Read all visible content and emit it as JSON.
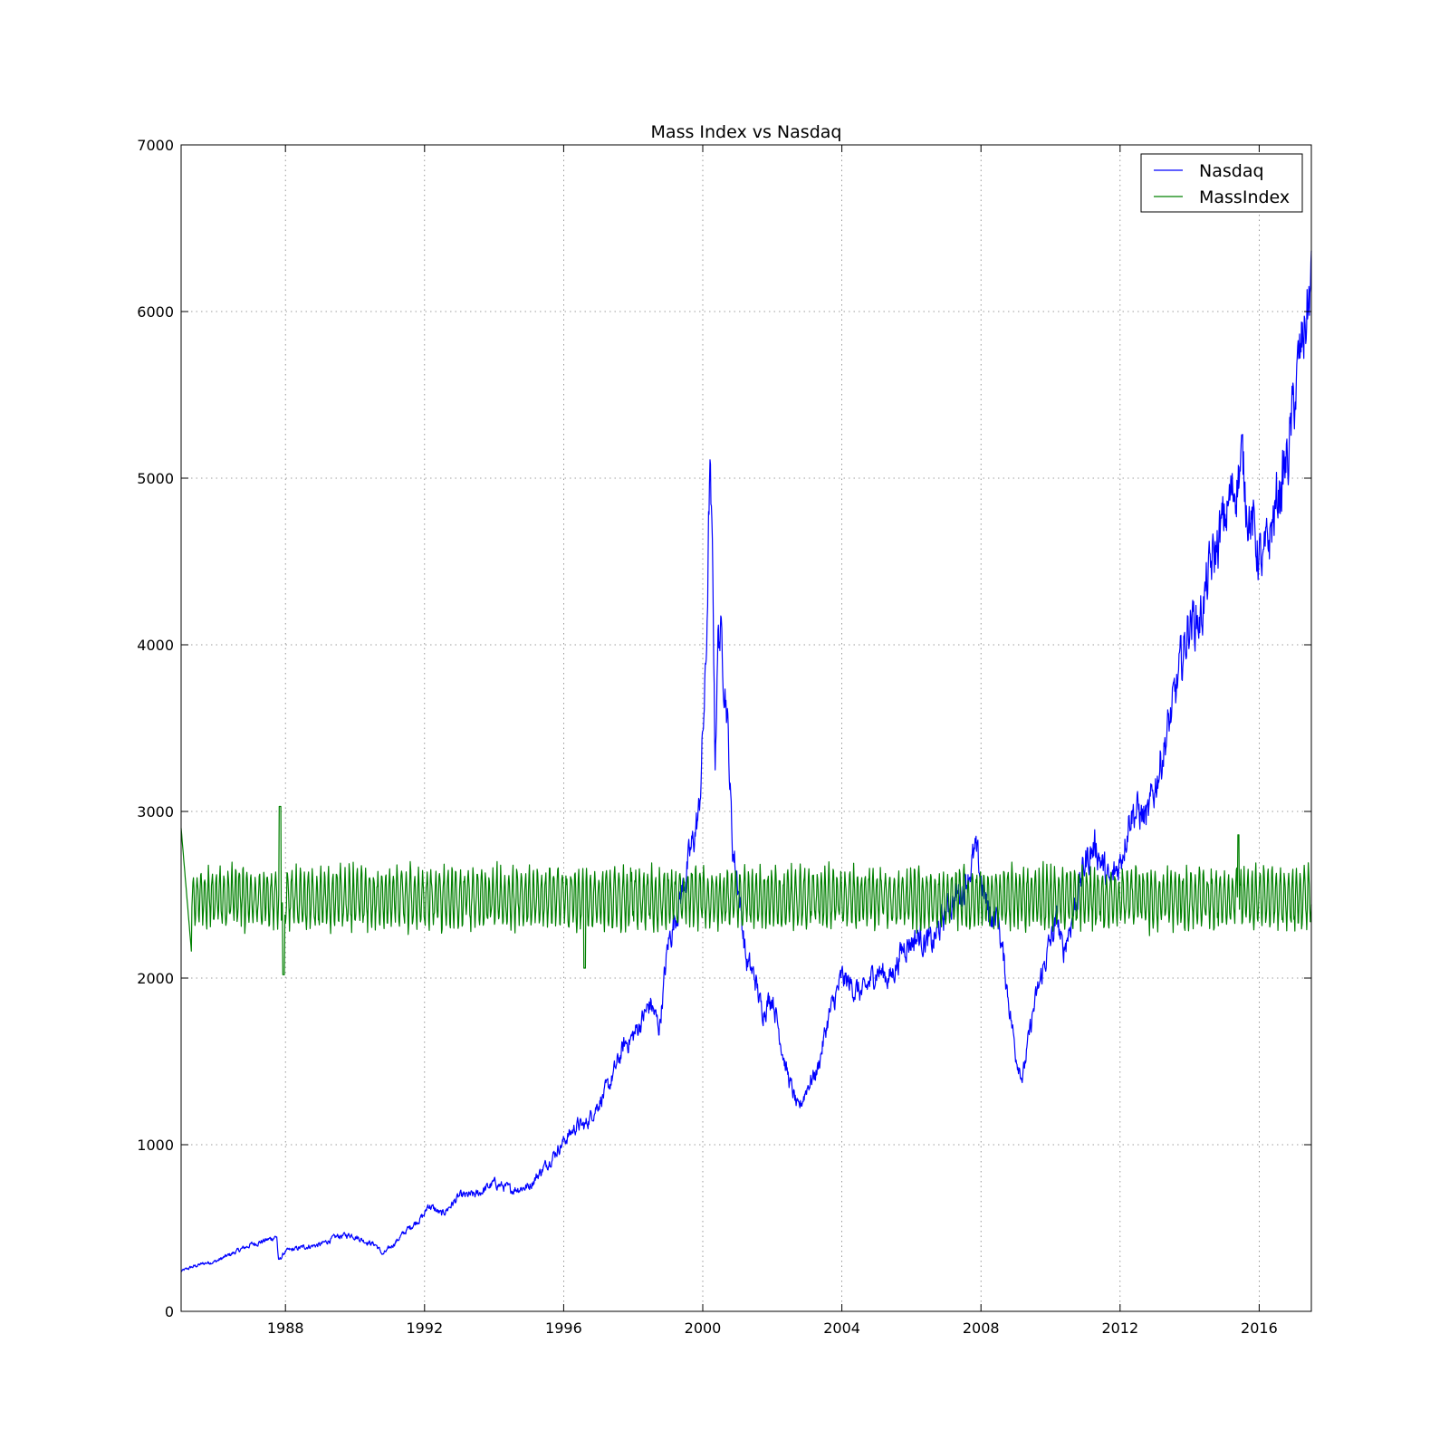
{
  "chart_data": {
    "type": "line",
    "title": "Mass Index vs Nasdaq",
    "xlabel": "",
    "ylabel": "",
    "xlim": [
      1985.0,
      2017.5
    ],
    "ylim": [
      0,
      7000
    ],
    "grid": true,
    "legend_position": "top-right",
    "x_ticks": [
      1988,
      1992,
      1996,
      2000,
      2004,
      2008,
      2012,
      2016
    ],
    "x_tick_labels": [
      "1988",
      "1992",
      "1996",
      "2000",
      "2004",
      "2008",
      "2012",
      "2016"
    ],
    "y_ticks": [
      0,
      1000,
      2000,
      3000,
      4000,
      5000,
      6000,
      7000
    ],
    "y_tick_labels": [
      "0",
      "1000",
      "2000",
      "3000",
      "4000",
      "5000",
      "6000",
      "7000"
    ],
    "series": [
      {
        "name": "Nasdaq",
        "color": "#0000ff",
        "x": [
          1985.0,
          1985.3,
          1985.7,
          1986.0,
          1986.5,
          1987.0,
          1987.5,
          1987.75,
          1987.8,
          1988.0,
          1988.5,
          1989.0,
          1989.5,
          1989.9,
          1990.3,
          1990.6,
          1990.8,
          1991.0,
          1991.5,
          1992.0,
          1992.1,
          1992.5,
          1993.0,
          1993.5,
          1994.0,
          1994.5,
          1995.0,
          1995.5,
          1996.0,
          1996.4,
          1996.6,
          1997.0,
          1997.3,
          1997.75,
          1998.0,
          1998.5,
          1998.75,
          1999.0,
          1999.5,
          1999.9,
          2000.1,
          2000.2,
          2000.3,
          2000.35,
          2000.45,
          2000.55,
          2000.7,
          2000.85,
          2001.0,
          2001.25,
          2001.5,
          2001.7,
          2002.0,
          2002.4,
          2002.75,
          2003.0,
          2003.3,
          2003.6,
          2004.0,
          2004.3,
          2004.6,
          2005.0,
          2005.4,
          2005.8,
          2006.2,
          2006.6,
          2007.0,
          2007.5,
          2007.85,
          2008.2,
          2008.5,
          2008.9,
          2009.0,
          2009.2,
          2009.5,
          2009.9,
          2010.2,
          2010.35,
          2010.6,
          2011.0,
          2011.3,
          2011.7,
          2012.0,
          2012.3,
          2012.5,
          2012.8,
          2013.0,
          2013.5,
          2014.0,
          2014.3,
          2014.6,
          2015.0,
          2015.5,
          2015.7,
          2016.1,
          2016.5,
          2016.85,
          2017.0,
          2017.3,
          2017.5
        ],
        "values": [
          240,
          265,
          290,
          300,
          350,
          400,
          430,
          450,
          300,
          360,
          385,
          400,
          450,
          460,
          420,
          400,
          340,
          380,
          490,
          580,
          640,
          580,
          690,
          700,
          770,
          730,
          750,
          880,
          1020,
          1120,
          1110,
          1250,
          1350,
          1600,
          1650,
          1850,
          1700,
          2200,
          2600,
          3000,
          3900,
          5050,
          4300,
          3300,
          4100,
          4000,
          3600,
          2800,
          2600,
          2100,
          2000,
          1800,
          1900,
          1450,
          1200,
          1350,
          1450,
          1750,
          2000,
          1950,
          1900,
          2050,
          2000,
          2200,
          2250,
          2200,
          2400,
          2550,
          2750,
          2400,
          2350,
          1700,
          1550,
          1400,
          1800,
          2150,
          2350,
          2150,
          2350,
          2700,
          2800,
          2550,
          2700,
          3000,
          3000,
          2950,
          3150,
          3600,
          4150,
          4150,
          4450,
          4750,
          5100,
          4800,
          4450,
          4850,
          5150,
          5450,
          5900,
          6150
        ]
      },
      {
        "name": "MassIndex",
        "color": "#008000"
      }
    ]
  }
}
